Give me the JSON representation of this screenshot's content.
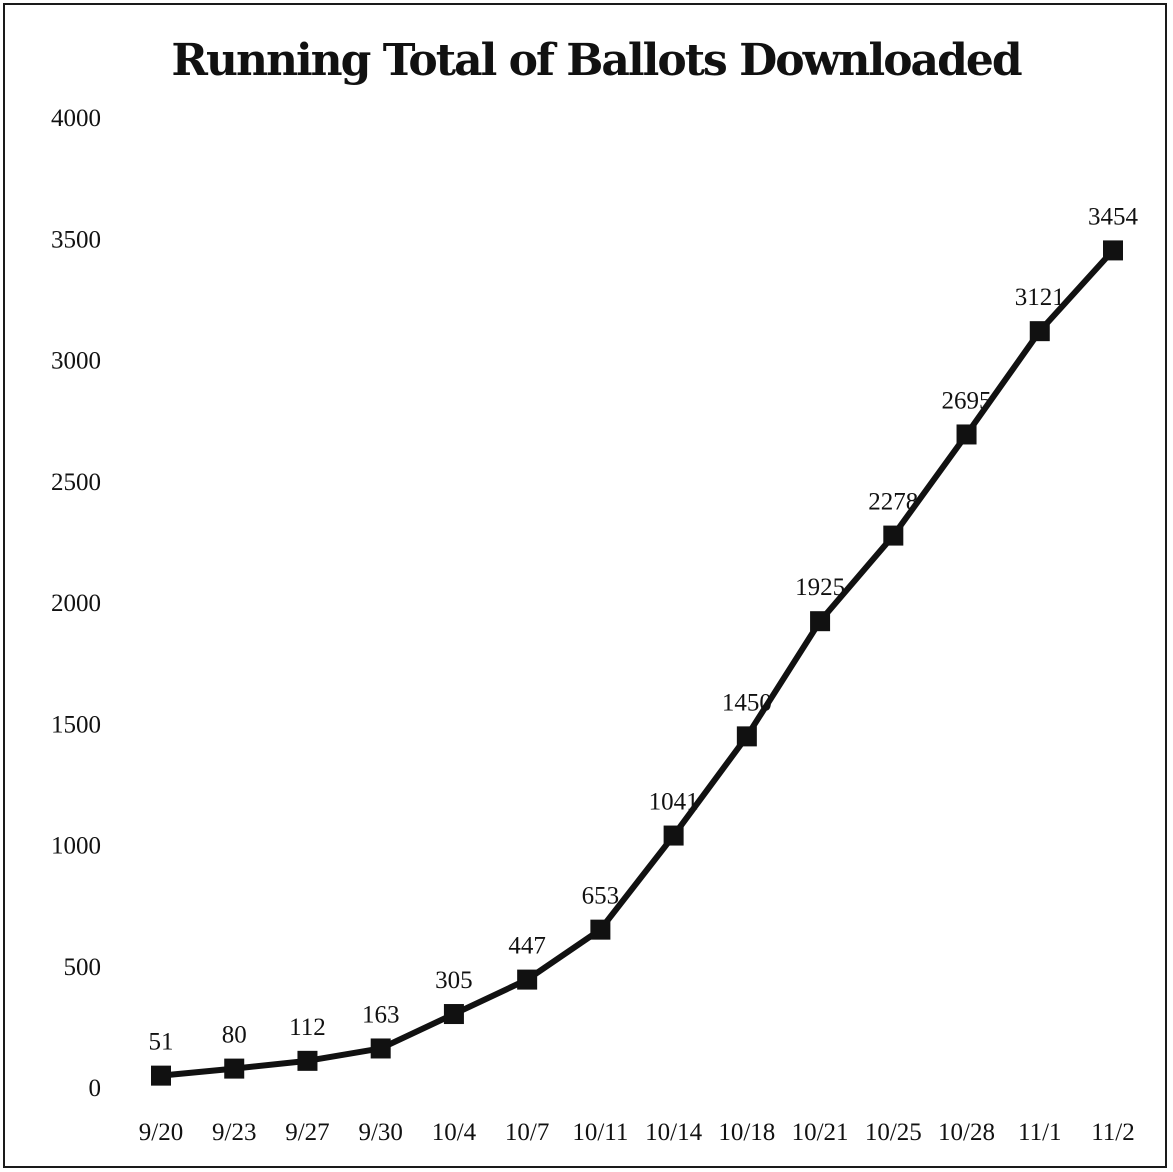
{
  "chart_data": {
    "type": "line",
    "title": "Running Total of Ballots Downloaded",
    "xlabel": "",
    "ylabel": "",
    "categories": [
      "9/20",
      "9/23",
      "9/27",
      "9/30",
      "10/4",
      "10/7",
      "10/11",
      "10/14",
      "10/18",
      "10/21",
      "10/25",
      "10/28",
      "11/1",
      "11/2"
    ],
    "series": [
      {
        "values": [
          51,
          80,
          112,
          163,
          305,
          447,
          653,
          1041,
          1450,
          1925,
          2278,
          2695,
          3121,
          3454
        ]
      }
    ],
    "data_labels": [
      "51",
      "80",
      "112",
      "163",
      "305",
      "447",
      "653",
      "1041",
      "1450",
      "1925",
      "2278",
      "2695",
      "3121",
      "3454"
    ],
    "yticks": [
      "0",
      "500",
      "1000",
      "1500",
      "2000",
      "2500",
      "3000",
      "3500",
      "4000"
    ],
    "ylim": [
      0,
      4000
    ],
    "grid": false,
    "legend": "none",
    "marker": "square",
    "line_color": "#111111"
  }
}
